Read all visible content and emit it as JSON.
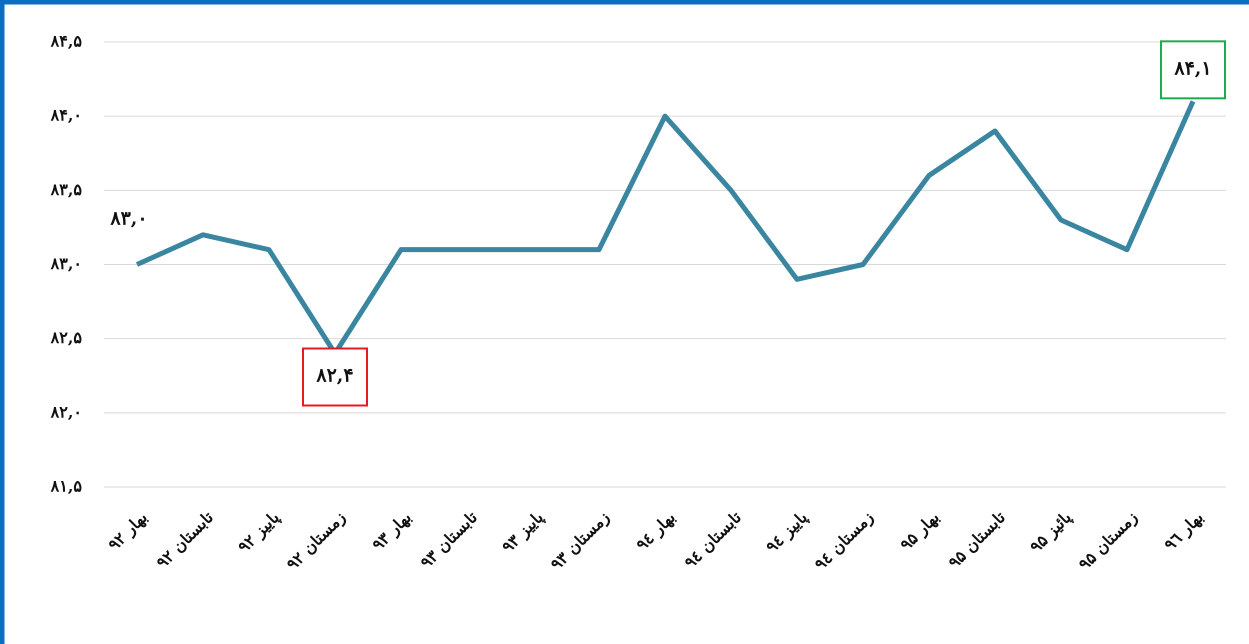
{
  "chart_data": {
    "type": "line",
    "categories": [
      "بهار ۹۲",
      "تابستان ۹۲",
      "پاییز ۹۲",
      "زمستان ۹۲",
      "بهار ۹۳",
      "تابستان ۹۳",
      "پاییز ۹۳",
      "زمستان ۹۳",
      "بهار ۹٤",
      "تابستان ۹٤",
      "پاییز ۹٤",
      "زمستان ۹٤",
      "بهار ۹۵",
      "تابستان ۹۵",
      "پائیز ۹۵",
      "زمستان ۹۵",
      "بهار ۹٦"
    ],
    "series": [
      {
        "color": "#3a86a0",
        "values": [
          83.0,
          83.2,
          83.1,
          82.4,
          83.1,
          83.1,
          83.1,
          83.1,
          84.0,
          83.5,
          82.9,
          83.0,
          83.6,
          83.9,
          83.3,
          83.1,
          84.1
        ],
        "value_labels": [
          "۸۳,۰",
          null,
          null,
          "۸۲,۴",
          null,
          null,
          null,
          null,
          null,
          null,
          null,
          null,
          null,
          null,
          null,
          null,
          "۸۴,۱"
        ],
        "value_label_boxes": [
          null,
          null,
          null,
          "#e31b23",
          null,
          null,
          null,
          null,
          null,
          null,
          null,
          null,
          null,
          null,
          null,
          null,
          "#1faa4b"
        ]
      }
    ],
    "ylim": [
      81.5,
      84.5
    ],
    "yticks": [
      {
        "value": 81.5,
        "label": "۸۱,۵"
      },
      {
        "value": 82.0,
        "label": "۸۲,۰"
      },
      {
        "value": 82.5,
        "label": "۸۲,۵"
      },
      {
        "value": 83.0,
        "label": "۸۳,۰"
      },
      {
        "value": 83.5,
        "label": "۸۳,۵"
      },
      {
        "value": 84.0,
        "label": "۸۴,۰"
      },
      {
        "value": 84.5,
        "label": "۸۴,۵"
      }
    ],
    "grid": true
  }
}
